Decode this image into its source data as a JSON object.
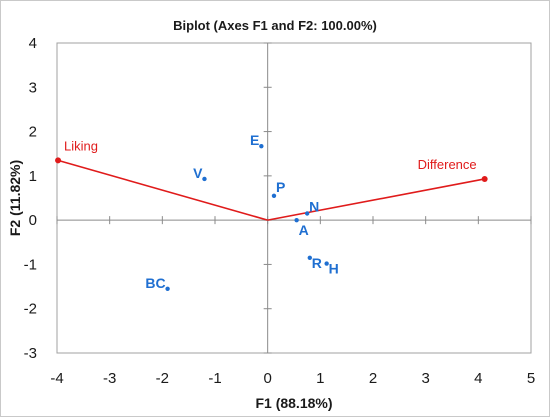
{
  "chart_data": {
    "type": "scatter",
    "title": "Biplot (Axes F1 and F2: 100.00%)",
    "xlabel": "F1 (88.18%)",
    "ylabel": "F2 (11.82%)",
    "xlim": [
      -4,
      5
    ],
    "ylim": [
      -3,
      4
    ],
    "x_ticks": [
      -4,
      -3,
      -2,
      -1,
      0,
      1,
      2,
      3,
      4,
      5
    ],
    "y_ticks": [
      -3,
      -2,
      -1,
      0,
      1,
      2,
      3,
      4
    ],
    "grid": false,
    "observations": {
      "color": "#1f6fd1",
      "points": [
        {
          "label": "E",
          "x": -0.12,
          "y": 1.67
        },
        {
          "label": "V",
          "x": -1.2,
          "y": 0.93
        },
        {
          "label": "P",
          "x": 0.12,
          "y": 0.55
        },
        {
          "label": "N",
          "x": 0.75,
          "y": 0.15
        },
        {
          "label": "A",
          "x": 0.55,
          "y": 0.0
        },
        {
          "label": "R",
          "x": 0.8,
          "y": -0.85
        },
        {
          "label": "H",
          "x": 1.12,
          "y": -0.98
        },
        {
          "label": "BC",
          "x": -1.9,
          "y": -1.55
        }
      ]
    },
    "variables": {
      "color": "#e01b1b",
      "vectors": [
        {
          "label": "Liking",
          "x": -3.98,
          "y": 1.35
        },
        {
          "label": "Difference",
          "x": 4.12,
          "y": 0.93
        }
      ]
    }
  }
}
